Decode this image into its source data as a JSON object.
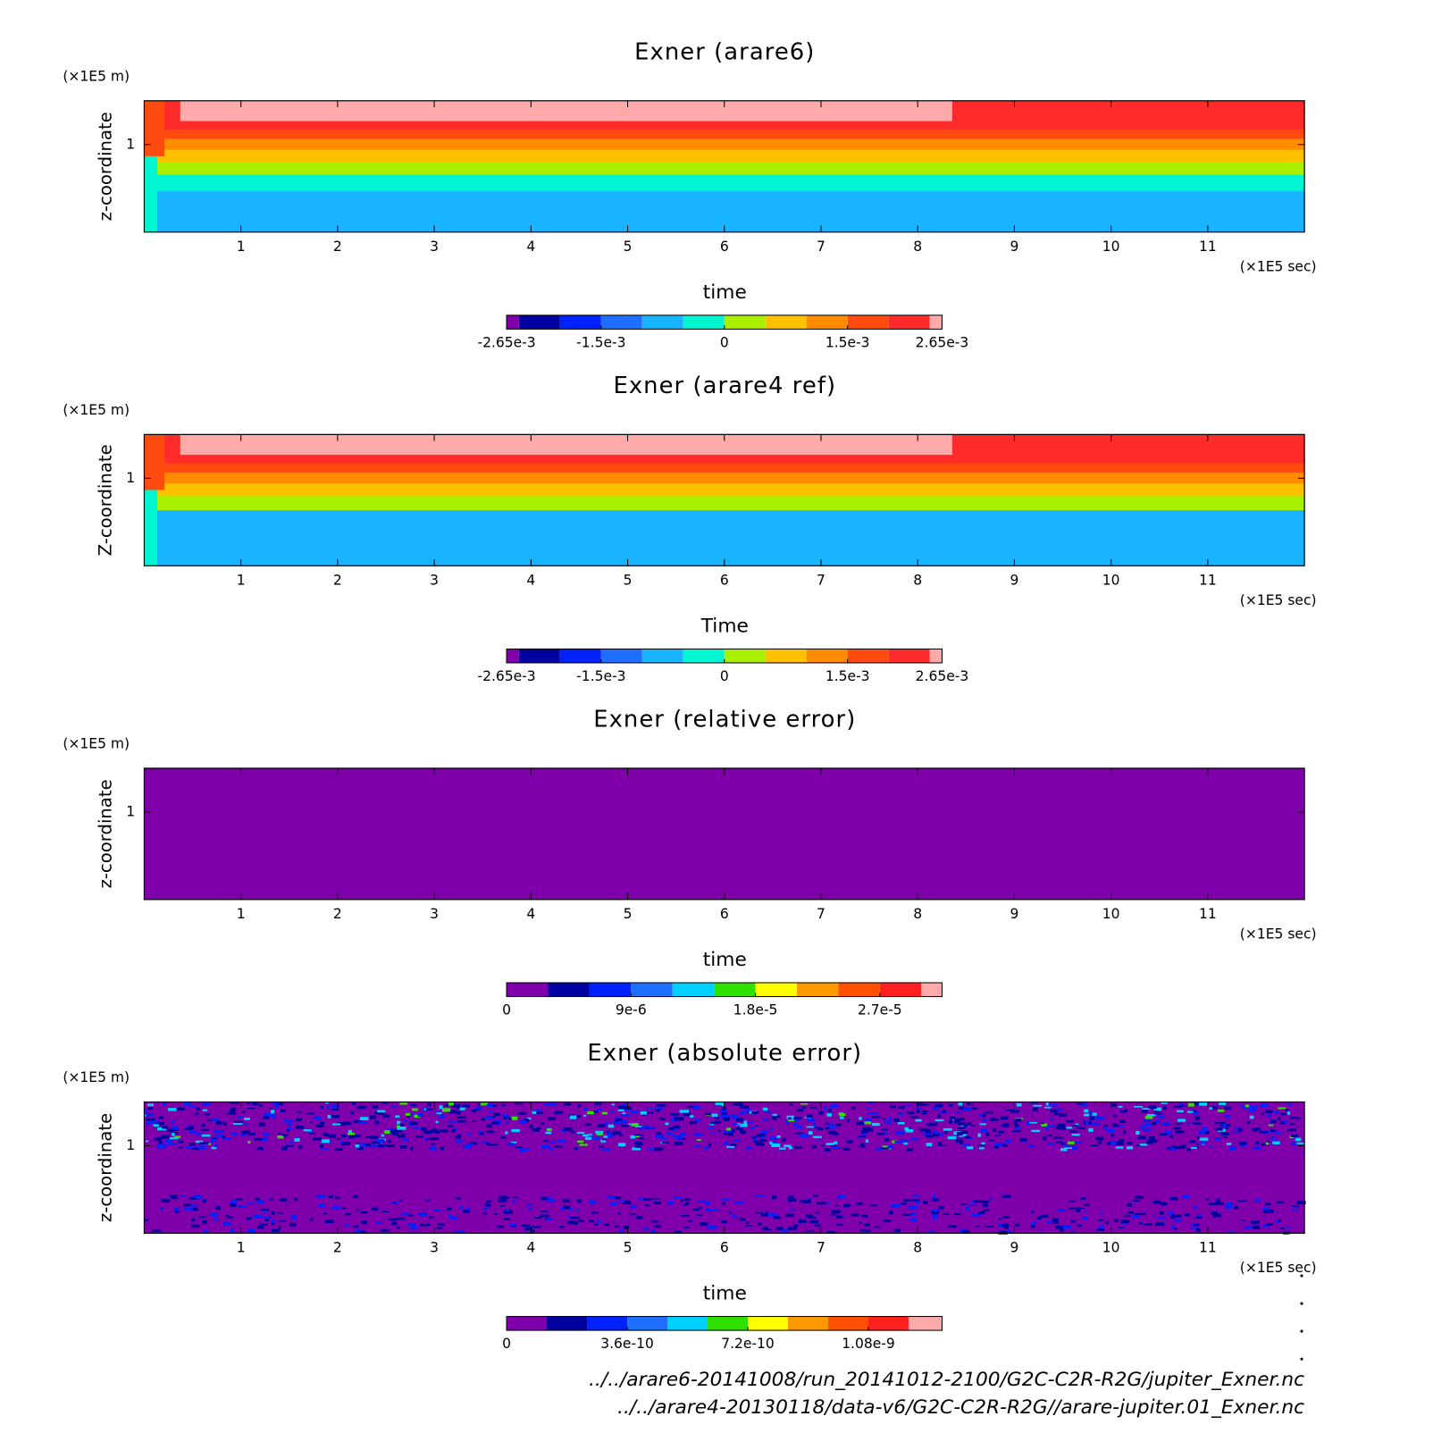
{
  "chart_data": [
    {
      "type": "contour",
      "title": "Exner (arare6)",
      "xlabel": "time",
      "ylabel": "z-coordinate",
      "x_unit": "(×1E5 sec)",
      "y_unit": "(×1E5 m)",
      "xlim": [
        0,
        12
      ],
      "xticks": [
        1,
        2,
        3,
        4,
        5,
        6,
        7,
        8,
        9,
        10,
        11
      ],
      "ylim": [
        0,
        1.5
      ],
      "yticks": [
        1
      ],
      "levels": [
        -0.00265,
        -0.0025,
        -0.002,
        -0.0015,
        -0.001,
        -0.0005,
        0,
        0.0005,
        0.001,
        0.0015,
        0.002,
        0.0025,
        0.00265
      ],
      "colors": [
        "#7f00aa",
        "#0000a0",
        "#0022ff",
        "#1e6fff",
        "#18b4ff",
        "#00f5d0",
        "#a8f000",
        "#ffc000",
        "#ff8c00",
        "#ff4a10",
        "#ff2a2a",
        "#ffaaaa"
      ],
      "colorbar_ticks": [
        {
          "value": -0.00265,
          "label": "-2.65e-3"
        },
        {
          "value": -0.0015,
          "label": "-1.5e-3"
        },
        0,
        {
          "value": 0.0015,
          "label": "1.5e-3"
        },
        {
          "value": 0.00265,
          "label": "2.65e-3"
        }
      ]
    },
    {
      "type": "contour",
      "title": "Exner (arare4 ref)",
      "xlabel": "Time",
      "ylabel": "Z-coordinate",
      "x_unit": "(×1E5 sec)",
      "y_unit": "(×1E5 m)",
      "xlim": [
        0,
        12
      ],
      "xticks": [
        1,
        2,
        3,
        4,
        5,
        6,
        7,
        8,
        9,
        10,
        11
      ],
      "ylim": [
        0,
        1.5
      ],
      "yticks": [
        1
      ],
      "levels": [
        -0.00265,
        -0.0025,
        -0.002,
        -0.0015,
        -0.001,
        -0.0005,
        0,
        0.0005,
        0.001,
        0.0015,
        0.002,
        0.0025,
        0.00265
      ],
      "colors": [
        "#7f00aa",
        "#0000a0",
        "#0022ff",
        "#1e6fff",
        "#18b4ff",
        "#00f5d0",
        "#a8f000",
        "#ffc000",
        "#ff8c00",
        "#ff4a10",
        "#ff2a2a",
        "#ffaaaa"
      ],
      "colorbar_ticks": [
        {
          "value": -0.00265,
          "label": "-2.65e-3"
        },
        {
          "value": -0.0015,
          "label": "-1.5e-3"
        },
        0,
        {
          "value": 0.0015,
          "label": "1.5e-3"
        },
        {
          "value": 0.00265,
          "label": "2.65e-3"
        }
      ]
    },
    {
      "type": "contour",
      "title": "Exner (relative error)",
      "xlabel": "time",
      "ylabel": "z-coordinate",
      "x_unit": "(×1E5 sec)",
      "y_unit": "(×1E5 m)",
      "xlim": [
        0,
        12
      ],
      "xticks": [
        1,
        2,
        3,
        4,
        5,
        6,
        7,
        8,
        9,
        10,
        11
      ],
      "ylim": [
        0,
        1.5
      ],
      "yticks": [
        1
      ],
      "levels": [
        0,
        3e-06,
        6e-06,
        9e-06,
        1.2e-05,
        1.5e-05,
        1.8e-05,
        2.1e-05,
        2.4e-05,
        2.7e-05,
        3e-05,
        3.15e-05
      ],
      "colors": [
        "#7f00aa",
        "#0000a0",
        "#0022ff",
        "#1e6fff",
        "#00d0ff",
        "#30e000",
        "#ffff00",
        "#ff9900",
        "#ff5000",
        "#ff2020",
        "#ffaaaa"
      ],
      "colorbar_ticks": [
        0,
        {
          "value": 9e-06,
          "label": "9e-6"
        },
        {
          "value": 1.8e-05,
          "label": "1.8e-5"
        },
        {
          "value": 2.7e-05,
          "label": "2.7e-5"
        }
      ]
    },
    {
      "type": "contour",
      "title": "Exner (absolute error)",
      "xlabel": "time",
      "ylabel": "z-coordinate",
      "x_unit": "(×1E5 sec)",
      "y_unit": "(×1E5 m)",
      "xlim": [
        0,
        12
      ],
      "xticks": [
        1,
        2,
        3,
        4,
        5,
        6,
        7,
        8,
        9,
        10,
        11
      ],
      "ylim": [
        0,
        1.5
      ],
      "yticks": [
        1
      ],
      "levels": [
        0,
        1.2e-10,
        2.4e-10,
        3.6e-10,
        4.8e-10,
        6e-10,
        7.2e-10,
        8.4e-10,
        9.6e-10,
        1.08e-09,
        1.2e-09,
        1.3e-09
      ],
      "colors": [
        "#7f00aa",
        "#0000a0",
        "#0022ff",
        "#1e6fff",
        "#00d0ff",
        "#30e000",
        "#ffff00",
        "#ff9900",
        "#ff5000",
        "#ff2020",
        "#ffaaaa"
      ],
      "colorbar_ticks": [
        0,
        {
          "value": 3.6e-10,
          "label": "3.6e-10"
        },
        {
          "value": 7.2e-10,
          "label": "7.2e-10"
        },
        {
          "value": 1.08e-09,
          "label": "1.08e-9"
        }
      ]
    }
  ],
  "footer": [
    "../../arare6-20141008/run_20141012-2100/G2C-C2R-R2G/jupiter_Exner.nc",
    "../../arare4-20130118/data-v6/G2C-C2R-R2G//arare-jupiter.01_Exner.nc"
  ]
}
